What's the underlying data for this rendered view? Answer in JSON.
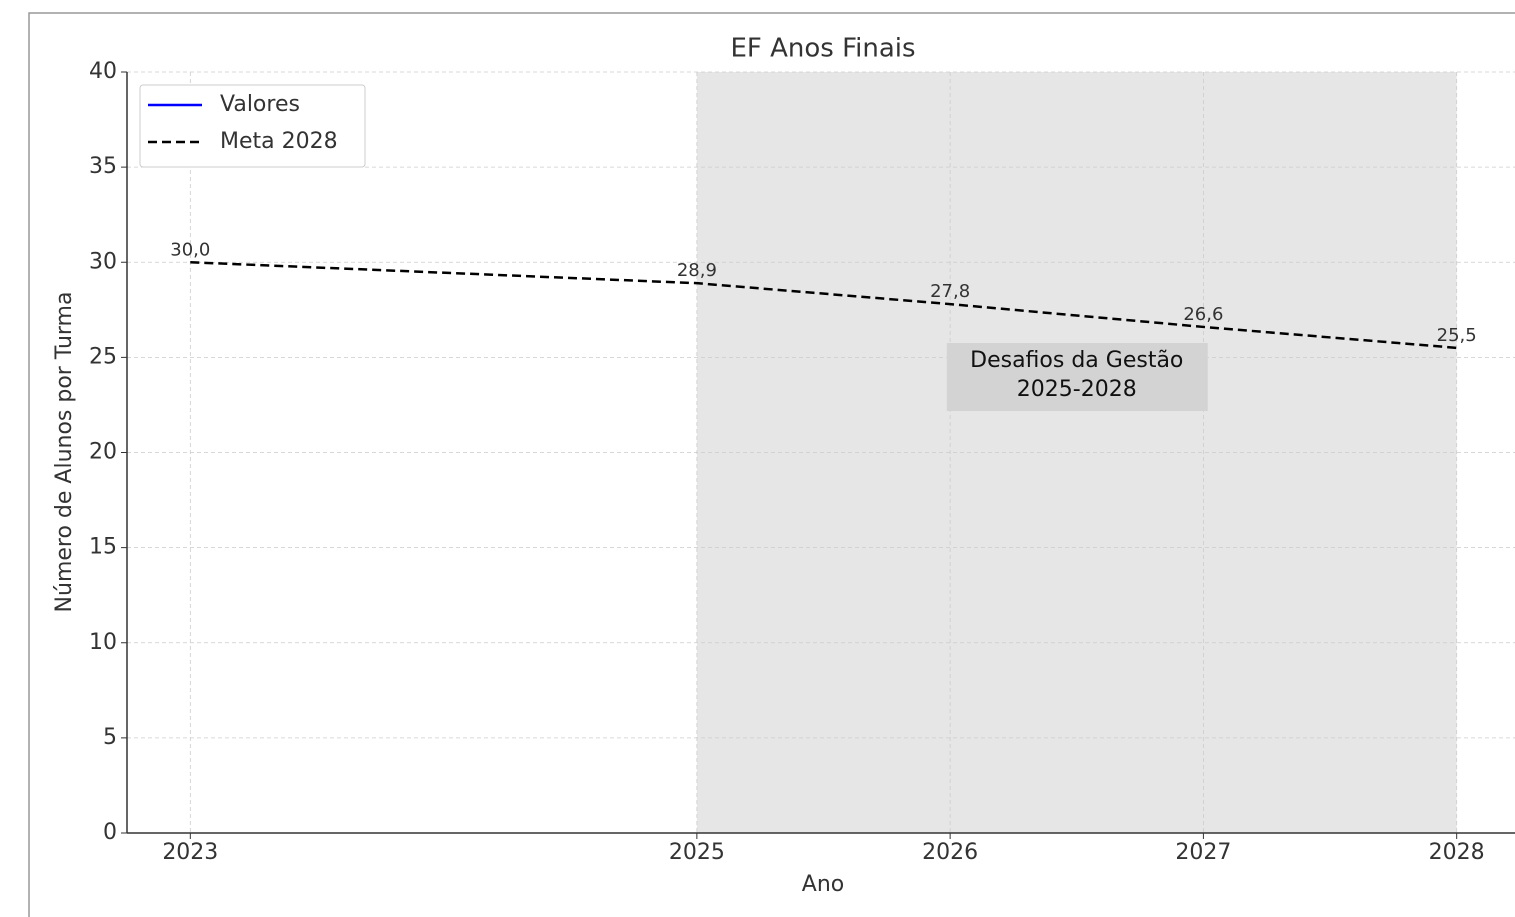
{
  "chart_data": {
    "type": "line",
    "title": "EF Anos Finais",
    "x_label": "Ano",
    "y_label": "Número de Alunos por Turma",
    "x": [
      2023,
      2025,
      2026,
      2027,
      2028
    ],
    "series": [
      {
        "name": "Valores",
        "color": "#0000ff",
        "style": "solid",
        "values": [
          null,
          null,
          null,
          null,
          null
        ]
      },
      {
        "name": "Meta 2028",
        "color": "#000000",
        "style": "dashed",
        "values": [
          30.0,
          28.9,
          27.8,
          26.6,
          25.5
        ],
        "value_labels": [
          "30,0",
          "28,9",
          "27,8",
          "26,6",
          "25,5"
        ]
      }
    ],
    "xlim": [
      2022.75,
      2028.25
    ],
    "xticks": [
      2023,
      2025,
      2026,
      2027,
      2028
    ],
    "ylim": [
      0,
      40
    ],
    "yticks": [
      0,
      5,
      10,
      15,
      20,
      25,
      30,
      35,
      40
    ],
    "grid": true,
    "legend": "upper left",
    "shaded_span": {
      "range": [
        2025,
        2028
      ],
      "color": "#e6e6e6",
      "label": [
        "Desafios da Gestão",
        "2025-2028"
      ]
    }
  }
}
